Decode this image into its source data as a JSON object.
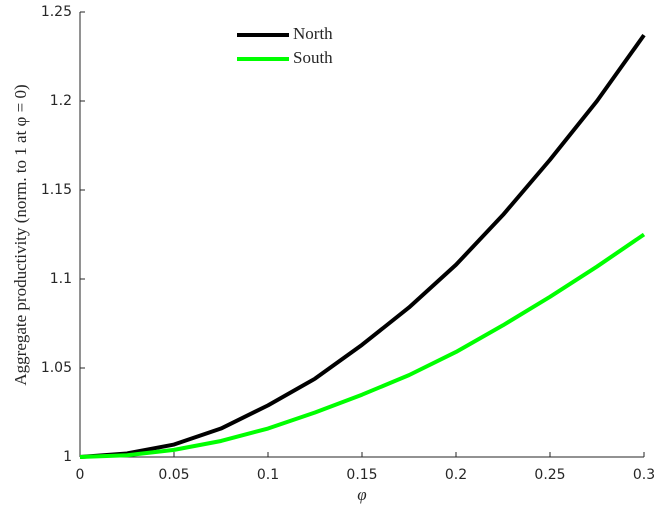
{
  "chart_data": {
    "type": "line",
    "xlabel": "φ",
    "ylabel": "Aggregate productivity (norm. to 1 at φ = 0)",
    "x": [
      0,
      0.025,
      0.05,
      0.075,
      0.1,
      0.125,
      0.15,
      0.175,
      0.2,
      0.225,
      0.25,
      0.275,
      0.3
    ],
    "series": [
      {
        "name": "North",
        "color": "#000000",
        "values": [
          1,
          1.002,
          1.007,
          1.016,
          1.029,
          1.044,
          1.063,
          1.084,
          1.108,
          1.136,
          1.167,
          1.2,
          1.237
        ]
      },
      {
        "name": "South",
        "color": "#00ff00",
        "values": [
          1,
          1.001,
          1.004,
          1.009,
          1.016,
          1.025,
          1.035,
          1.046,
          1.059,
          1.074,
          1.09,
          1.107,
          1.125
        ]
      }
    ],
    "xlim": [
      0,
      0.3
    ],
    "xticks": [
      0,
      0.05,
      0.1,
      0.15,
      0.2,
      0.25,
      0.3
    ],
    "ylim": [
      1,
      1.25
    ],
    "yticks": [
      1,
      1.05,
      1.1,
      1.15,
      1.2,
      1.25
    ],
    "grid": false,
    "legend": "top-left"
  }
}
